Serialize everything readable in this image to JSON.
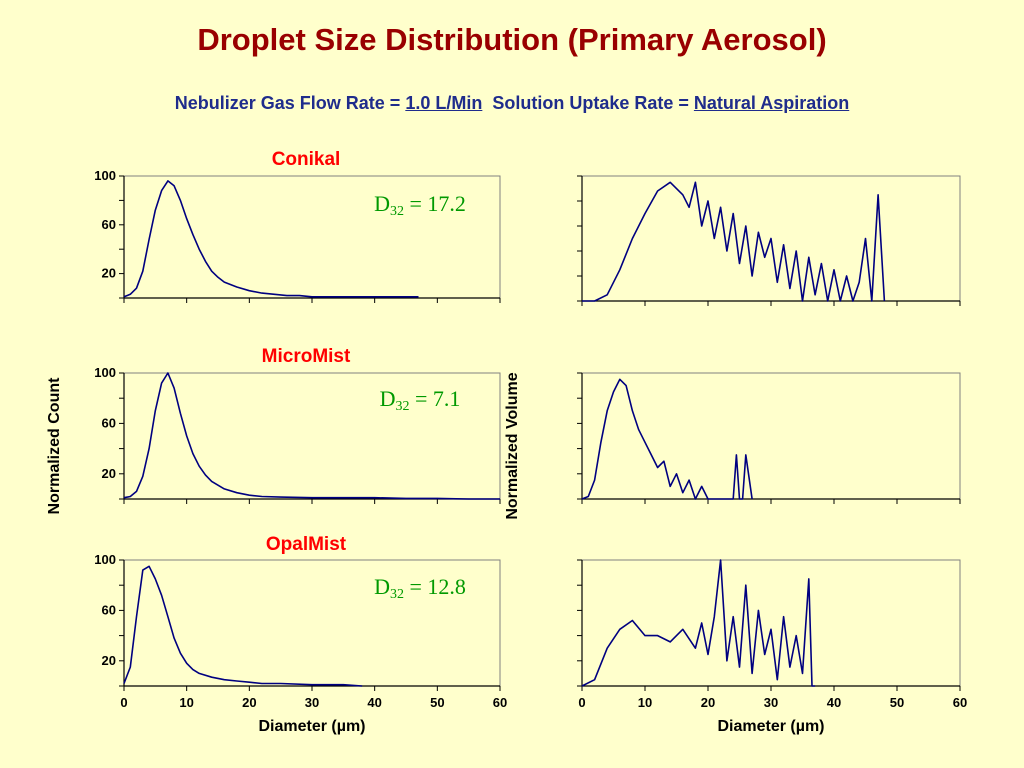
{
  "title": "Droplet  Size Distribution (Primary Aerosol)",
  "subtitle": {
    "flow_label": "Nebulizer Gas Flow Rate = ",
    "flow_value": "1.0 L/Min",
    "uptake_label": "  Solution Uptake Rate = ",
    "uptake_value": "Natural Aspiration"
  },
  "colors": {
    "background": "#ffffcc",
    "plot_background": "#ffffcc",
    "title": "#990000",
    "subtitle": "#1f2c8c",
    "chart_title": "#ff0000",
    "series_line": "#000080",
    "d32_label": "#009900",
    "axis": "#000000"
  },
  "chart_data": [
    {
      "type": "line",
      "id": "conikal-count",
      "title": "Conikal",
      "ylabel": "",
      "xlabel": "",
      "xlim": [
        0,
        60
      ],
      "ylim": [
        0,
        100
      ],
      "y_tick_labels": [
        20,
        60,
        100
      ],
      "show_x_tick_labels": false,
      "annotation": {
        "prefix": "D",
        "subscript": "32",
        "text": " = 17.2"
      },
      "series": [
        {
          "x": [
            0,
            1,
            2,
            3,
            4,
            5,
            6,
            7,
            8,
            9,
            10,
            11,
            12,
            13,
            14,
            15,
            16,
            18,
            20,
            22,
            24,
            26,
            28,
            30,
            35,
            40,
            45,
            47
          ],
          "y": [
            1,
            3,
            8,
            22,
            48,
            72,
            88,
            96,
            92,
            80,
            65,
            52,
            40,
            30,
            22,
            17,
            13,
            9,
            6,
            4,
            3,
            2,
            2,
            1,
            1,
            1,
            1,
            1
          ]
        }
      ]
    },
    {
      "type": "line",
      "id": "conikal-volume",
      "title": "",
      "ylabel": "",
      "xlabel": "",
      "xlim": [
        0,
        60
      ],
      "ylim": [
        0,
        100
      ],
      "y_tick_labels": [],
      "show_x_tick_labels": false,
      "series": [
        {
          "x": [
            0,
            2,
            4,
            6,
            8,
            10,
            12,
            14,
            16,
            17,
            18,
            19,
            20,
            21,
            22,
            23,
            24,
            25,
            26,
            27,
            28,
            29,
            30,
            31,
            32,
            33,
            34,
            35,
            36,
            37,
            38,
            39,
            40,
            41,
            42,
            43,
            44,
            45,
            46,
            47,
            48
          ],
          "y": [
            0,
            0,
            5,
            25,
            50,
            70,
            88,
            95,
            85,
            75,
            95,
            60,
            80,
            50,
            75,
            40,
            70,
            30,
            60,
            20,
            55,
            35,
            50,
            15,
            45,
            10,
            40,
            0,
            35,
            5,
            30,
            0,
            25,
            0,
            20,
            0,
            15,
            50,
            0,
            85,
            0
          ]
        }
      ]
    },
    {
      "type": "line",
      "id": "micromist-count",
      "title": "MicroMist",
      "ylabel": "Normalized Count",
      "xlabel": "",
      "xlim": [
        0,
        60
      ],
      "ylim": [
        0,
        100
      ],
      "y_tick_labels": [
        20,
        60,
        100
      ],
      "show_x_tick_labels": false,
      "annotation": {
        "prefix": "D",
        "subscript": "32",
        "text": " = 7.1"
      },
      "series": [
        {
          "x": [
            0,
            1,
            2,
            3,
            4,
            5,
            6,
            7,
            8,
            9,
            10,
            11,
            12,
            13,
            14,
            16,
            18,
            20,
            22,
            25,
            30,
            35,
            40,
            45,
            50,
            55,
            60
          ],
          "y": [
            1,
            2,
            6,
            18,
            40,
            70,
            92,
            100,
            88,
            68,
            50,
            36,
            26,
            19,
            14,
            8,
            5,
            3,
            2,
            1.5,
            1,
            1,
            1,
            0.5,
            0.5,
            0,
            0
          ]
        }
      ]
    },
    {
      "type": "line",
      "id": "micromist-volume",
      "title": "",
      "ylabel": "Normalized Volume",
      "xlabel": "",
      "xlim": [
        0,
        60
      ],
      "ylim": [
        0,
        100
      ],
      "y_tick_labels": [],
      "show_x_tick_labels": false,
      "series": [
        {
          "x": [
            0,
            1,
            2,
            3,
            4,
            5,
            6,
            7,
            8,
            9,
            10,
            11,
            12,
            13,
            14,
            15,
            16,
            17,
            18,
            19,
            20,
            21,
            22,
            23,
            24,
            24.5,
            25,
            25.5,
            26,
            27
          ],
          "y": [
            0,
            2,
            15,
            45,
            70,
            85,
            95,
            90,
            70,
            55,
            45,
            35,
            25,
            30,
            10,
            20,
            5,
            15,
            0,
            10,
            0,
            0,
            0,
            0,
            0,
            35,
            0,
            0,
            35,
            0
          ]
        }
      ]
    },
    {
      "type": "line",
      "id": "opalmist-count",
      "title": "OpalMist",
      "ylabel": "",
      "xlabel": "Diameter (µm)",
      "xlim": [
        0,
        60
      ],
      "ylim": [
        0,
        100
      ],
      "y_tick_labels": [
        20,
        60,
        100
      ],
      "x_tick_labels": [
        0,
        10,
        20,
        30,
        40,
        50,
        60
      ],
      "show_x_tick_labels": true,
      "annotation": {
        "prefix": "D",
        "subscript": "32",
        "text": " = 12.8"
      },
      "series": [
        {
          "x": [
            0,
            1,
            2,
            3,
            4,
            5,
            6,
            7,
            8,
            9,
            10,
            11,
            12,
            14,
            16,
            18,
            20,
            22,
            25,
            30,
            35,
            38
          ],
          "y": [
            2,
            15,
            55,
            92,
            95,
            85,
            72,
            55,
            38,
            26,
            18,
            13,
            10,
            7,
            5,
            4,
            3,
            2,
            2,
            1,
            1,
            0
          ]
        }
      ]
    },
    {
      "type": "line",
      "id": "opalmist-volume",
      "title": "",
      "ylabel": "",
      "xlabel": "Diameter (µm)",
      "xlim": [
        0,
        60
      ],
      "ylim": [
        0,
        100
      ],
      "y_tick_labels": [],
      "x_tick_labels": [
        0,
        10,
        20,
        30,
        40,
        50,
        60
      ],
      "show_x_tick_labels": true,
      "series": [
        {
          "x": [
            0,
            2,
            4,
            6,
            8,
            10,
            12,
            14,
            16,
            18,
            19,
            20,
            21,
            22,
            23,
            24,
            25,
            26,
            27,
            28,
            29,
            30,
            31,
            32,
            33,
            34,
            35,
            36,
            36.5,
            37
          ],
          "y": [
            0,
            5,
            30,
            45,
            52,
            40,
            40,
            35,
            45,
            30,
            50,
            25,
            55,
            100,
            20,
            55,
            15,
            80,
            10,
            60,
            25,
            45,
            5,
            55,
            15,
            40,
            10,
            85,
            0,
            0
          ]
        }
      ]
    }
  ]
}
